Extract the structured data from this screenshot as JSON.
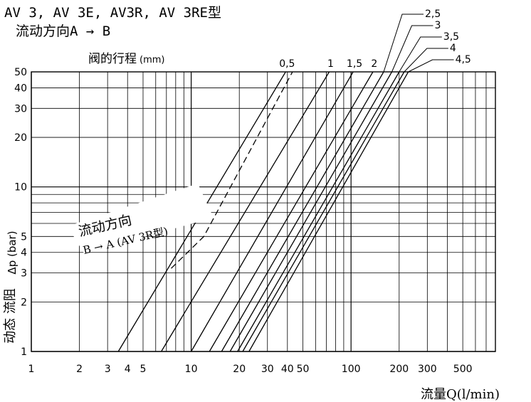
{
  "chart_data": {
    "type": "line",
    "title": "AV 3, AV 3E, AV3R, AV 3RE型",
    "subtitle": "流动方向A → B",
    "x_axis": {
      "label": "流量Q(l/min)",
      "scale": "log",
      "range": [
        1,
        800
      ],
      "ticks": [
        "1",
        "2",
        "3",
        "4",
        "5",
        "10",
        "20",
        "30",
        "40",
        "50",
        "100",
        "200",
        "300",
        "500"
      ]
    },
    "y_axis": {
      "label": "Δp (bar)",
      "label_prefix": "动态 流阻",
      "scale": "log",
      "range": [
        1,
        50
      ],
      "ticks": [
        "1",
        "2",
        "3",
        "4",
        "5",
        "10",
        "20",
        "30",
        "40",
        "50"
      ]
    },
    "grid": true,
    "stroke_label": "阀的行程",
    "stroke_unit": "(mm)",
    "series": [
      {
        "name": "0,5",
        "style": "solid",
        "points": [
          [
            3.5,
            1
          ],
          [
            39,
            50
          ]
        ]
      },
      {
        "name": "1",
        "style": "solid",
        "points": [
          [
            6.5,
            1
          ],
          [
            73,
            50
          ]
        ]
      },
      {
        "name": "1,5",
        "style": "solid",
        "points": [
          [
            10,
            1
          ],
          [
            103,
            50
          ]
        ]
      },
      {
        "name": "2",
        "style": "solid",
        "points": [
          [
            13,
            1
          ],
          [
            137,
            50
          ]
        ]
      },
      {
        "name": "2,5",
        "style": "solid",
        "points": [
          [
            15.5,
            1
          ],
          [
            160,
            50
          ]
        ]
      },
      {
        "name": "3",
        "style": "solid",
        "points": [
          [
            17.5,
            1
          ],
          [
            180,
            50
          ]
        ]
      },
      {
        "name": "3,5",
        "style": "solid",
        "points": [
          [
            19.5,
            1
          ],
          [
            200,
            50
          ]
        ]
      },
      {
        "name": "4",
        "style": "solid",
        "points": [
          [
            21,
            1
          ],
          [
            215,
            50
          ]
        ]
      },
      {
        "name": "4,5",
        "style": "solid",
        "points": [
          [
            23,
            1
          ],
          [
            228,
            50
          ]
        ]
      },
      {
        "name": "",
        "style": "dashed",
        "points": [
          [
            7.5,
            3.2
          ],
          [
            12,
            5
          ],
          [
            43,
            50
          ]
        ]
      }
    ],
    "annotation": {
      "text_line1": "流动方向",
      "text_line2": "B  →  A  (AV 3R型)"
    }
  }
}
